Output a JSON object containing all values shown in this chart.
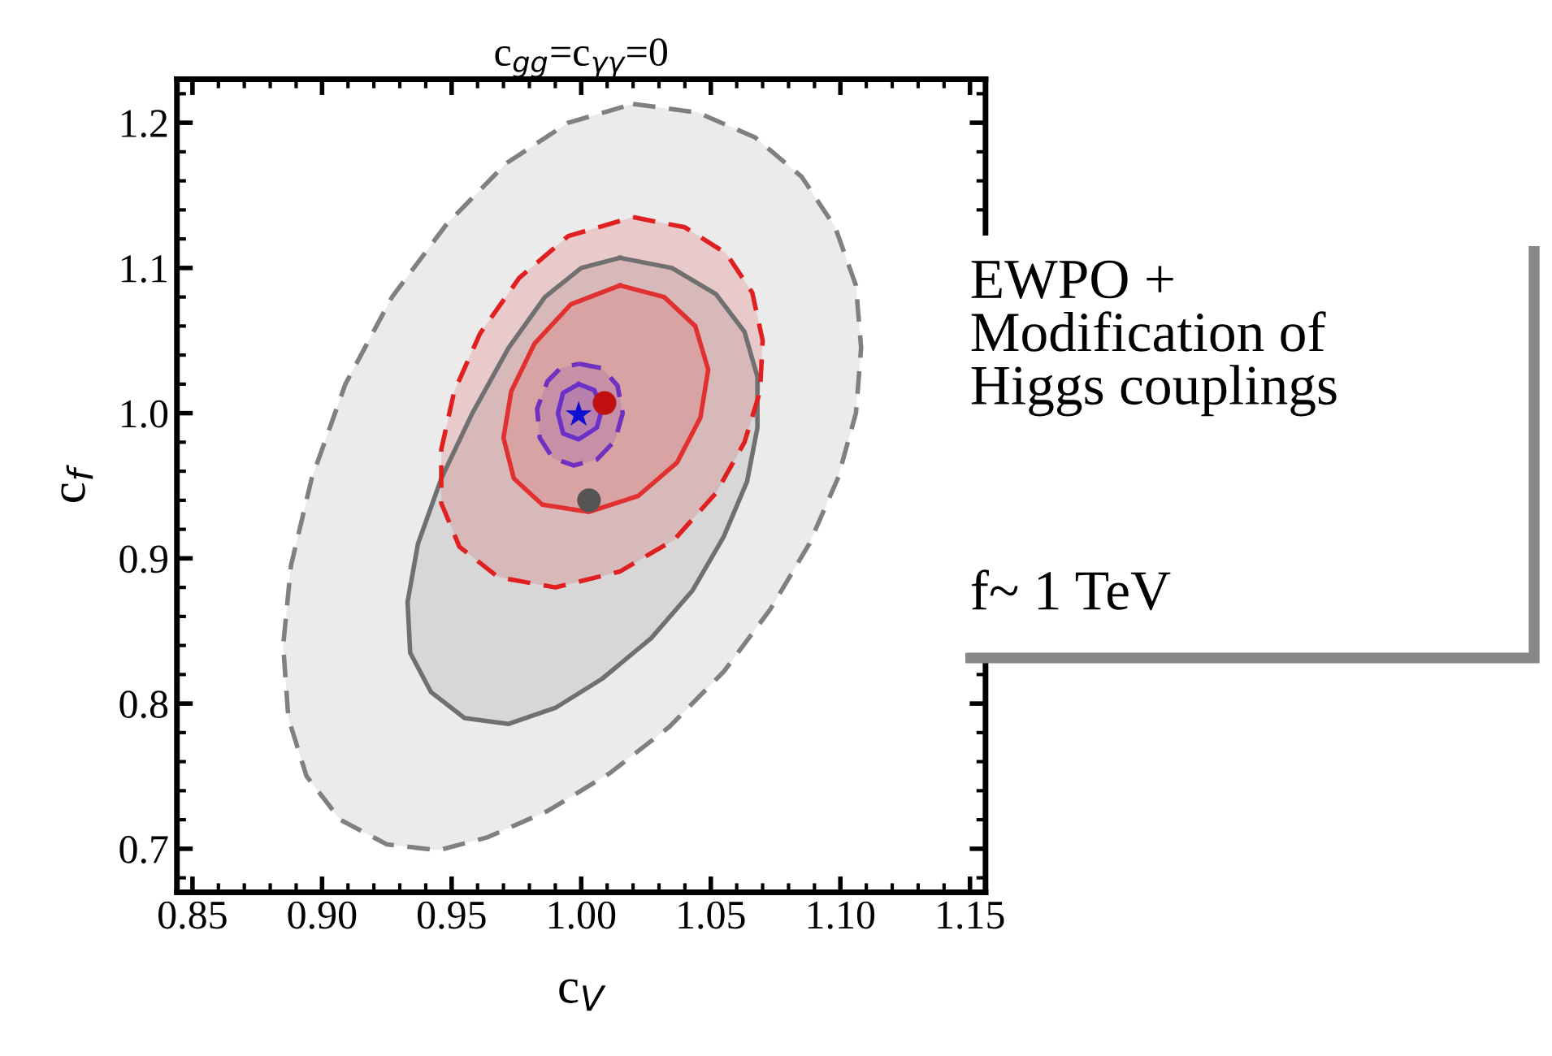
{
  "chart_data": {
    "type": "area",
    "title": "c$_{gg}$=c$_{γγ}$=0",
    "xlabel": "c$_{V}$",
    "ylabel": "c$_{f}$",
    "annotations": [
      "EWPO +\nModification of\nHiggs couplings",
      "f~ 1 TeV"
    ],
    "xlim": [
      0.844,
      1.156
    ],
    "ylim": [
      0.67,
      1.23
    ],
    "xticks": [
      {
        "value": 0.85,
        "label": "0.85"
      },
      {
        "value": 0.9,
        "label": "0.90"
      },
      {
        "value": 0.95,
        "label": "0.95"
      },
      {
        "value": 1.0,
        "label": "1.00"
      },
      {
        "value": 1.05,
        "label": "1.05"
      },
      {
        "value": 1.1,
        "label": "1.10"
      },
      {
        "value": 1.15,
        "label": "1.15"
      }
    ],
    "yticks": [
      {
        "value": 0.7,
        "label": "0.7"
      },
      {
        "value": 0.8,
        "label": "0.8"
      },
      {
        "value": 0.9,
        "label": "0.9"
      },
      {
        "value": 1.0,
        "label": "1.0"
      },
      {
        "value": 1.1,
        "label": "1.1"
      },
      {
        "value": 1.2,
        "label": "1.2"
      }
    ],
    "series": [
      {
        "color": "#808080",
        "line_style": "dashed",
        "x": [
          1.02,
          1.045,
          1.067,
          1.085,
          1.098,
          1.106,
          1.108,
          1.106,
          1.099,
          1.088,
          1.073,
          1.055,
          1.034,
          1.011,
          0.987,
          0.964,
          0.945,
          0.925,
          0.907,
          0.894,
          0.887,
          0.885,
          0.888,
          0.896,
          0.909,
          0.927,
          0.948,
          0.971,
          0.995
        ],
        "values": [
          1.213,
          1.207,
          1.19,
          1.163,
          1.128,
          1.088,
          1.045,
          1.0,
          0.955,
          0.91,
          0.865,
          0.822,
          0.784,
          0.752,
          0.726,
          0.708,
          0.699,
          0.703,
          0.72,
          0.75,
          0.79,
          0.84,
          0.895,
          0.955,
          1.02,
          1.08,
          1.13,
          1.172,
          1.2
        ]
      },
      {
        "color": "#707070",
        "line_style": "solid",
        "x": [
          1.015,
          1.035,
          1.052,
          1.063,
          1.068,
          1.068,
          1.064,
          1.055,
          1.043,
          1.027,
          1.008,
          0.99,
          0.972,
          0.955,
          0.942,
          0.934,
          0.933,
          0.937,
          0.946,
          0.958,
          0.972,
          0.986,
          1.0
        ],
        "values": [
          1.107,
          1.1,
          1.082,
          1.056,
          1.025,
          0.99,
          0.953,
          0.915,
          0.878,
          0.845,
          0.817,
          0.797,
          0.786,
          0.79,
          0.808,
          0.835,
          0.87,
          0.91,
          0.955,
          1.0,
          1.045,
          1.08,
          1.1
        ]
      },
      {
        "color": "#e02020",
        "line_style": "dashed",
        "x": [
          1.02,
          1.04,
          1.056,
          1.066,
          1.07,
          1.069,
          1.063,
          1.052,
          1.036,
          1.015,
          0.99,
          0.968,
          0.953,
          0.946,
          0.946,
          0.951,
          0.961,
          0.976,
          0.995
        ],
        "values": [
          1.135,
          1.128,
          1.11,
          1.083,
          1.05,
          1.015,
          0.98,
          0.945,
          0.913,
          0.891,
          0.88,
          0.887,
          0.908,
          0.938,
          0.975,
          1.015,
          1.055,
          1.093,
          1.122
        ]
      },
      {
        "color": "#e03030",
        "line_style": "solid",
        "x": [
          1.015,
          1.032,
          1.044,
          1.049,
          1.046,
          1.037,
          1.022,
          1.003,
          0.985,
          0.974,
          0.97,
          0.973,
          0.982,
          0.996
        ],
        "values": [
          1.088,
          1.08,
          1.06,
          1.03,
          0.997,
          0.966,
          0.943,
          0.932,
          0.937,
          0.955,
          0.983,
          1.015,
          1.048,
          1.075
        ]
      },
      {
        "color": "#7030c0",
        "line_style": "dashed",
        "x": [
          0.999,
          1.008,
          1.014,
          1.016,
          1.013,
          1.006,
          0.997,
          0.989,
          0.984,
          0.983,
          0.987,
          0.992
        ],
        "values": [
          1.034,
          1.031,
          1.019,
          1.0,
          0.981,
          0.968,
          0.964,
          0.969,
          0.983,
          1.003,
          1.022,
          1.031
        ]
      },
      {
        "color": "#6a30c8",
        "line_style": "solid",
        "x": [
          0.999,
          1.005,
          1.008,
          1.006,
          0.999,
          0.993,
          0.991,
          0.993
        ],
        "values": [
          1.02,
          1.016,
          1.003,
          0.99,
          0.982,
          0.986,
          1.0,
          1.014
        ]
      },
      {
        "type": "scatter",
        "color": "#555555",
        "marker": "circle",
        "x": [
          1.003
        ],
        "values": [
          0.94
        ]
      },
      {
        "type": "scatter",
        "color": "#c01010",
        "marker": "circle",
        "x": [
          1.009
        ],
        "values": [
          1.007
        ]
      },
      {
        "type": "scatter",
        "color": "#1010d0",
        "marker": "star",
        "x": [
          0.999
        ],
        "values": [
          0.999
        ]
      }
    ]
  }
}
